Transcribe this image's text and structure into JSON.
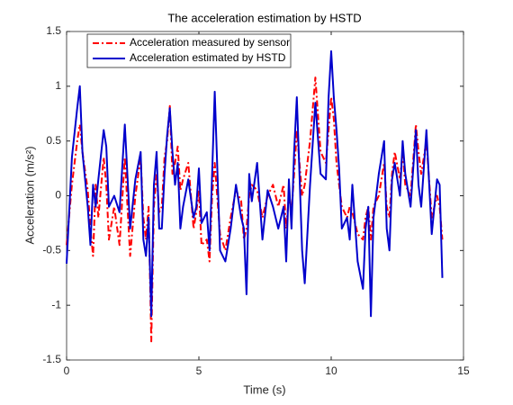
{
  "chart_data": {
    "type": "line",
    "title": "The acceleration estimation by HSTD",
    "x_label": "Time (s)",
    "y_label": "Acceleration (m/s²)",
    "xlim": [
      0,
      15
    ],
    "xticks": [
      0,
      5,
      10,
      15
    ],
    "ylim": [
      -1.5,
      1.5
    ],
    "yticks": [
      -1.5,
      -1,
      -0.5,
      0,
      0.5,
      1,
      1.5
    ],
    "legend": "upper left",
    "x": [
      0,
      0.2,
      0.4,
      0.5,
      0.6,
      0.8,
      0.9,
      1.0,
      1.1,
      1.2,
      1.4,
      1.5,
      1.6,
      1.8,
      2.0,
      2.2,
      2.4,
      2.6,
      2.8,
      2.9,
      3.0,
      3.1,
      3.2,
      3.3,
      3.4,
      3.5,
      3.6,
      3.7,
      3.8,
      3.9,
      4.0,
      4.1,
      4.2,
      4.3,
      4.4,
      4.6,
      4.8,
      4.9,
      5.0,
      5.1,
      5.3,
      5.4,
      5.5,
      5.6,
      5.8,
      6.0,
      6.2,
      6.4,
      6.6,
      6.7,
      6.8,
      6.9,
      7.0,
      7.2,
      7.4,
      7.6,
      7.8,
      8.0,
      8.2,
      8.3,
      8.4,
      8.5,
      8.6,
      8.7,
      8.9,
      9.0,
      9.2,
      9.4,
      9.6,
      9.8,
      9.9,
      10.0,
      10.1,
      10.2,
      10.3,
      10.4,
      10.6,
      10.7,
      10.8,
      11.0,
      11.2,
      11.3,
      11.4,
      11.5,
      11.6,
      11.8,
      12.0,
      12.1,
      12.2,
      12.3,
      12.4,
      12.6,
      12.7,
      12.8,
      13.0,
      13.2,
      13.3,
      13.4,
      13.6,
      13.8,
      14.0,
      14.1,
      14.2
    ],
    "series": [
      {
        "name": "Acceleration measured by sensor",
        "color": "#ff0000",
        "dash": "dashdot",
        "values": [
          -0.45,
          0.1,
          0.5,
          0.65,
          0.4,
          0.05,
          -0.3,
          -0.55,
          0.1,
          -0.2,
          0.35,
          0.1,
          -0.4,
          -0.1,
          -0.45,
          0.35,
          -0.55,
          0.0,
          0.35,
          -0.2,
          -0.4,
          -0.1,
          -1.33,
          -0.1,
          0.2,
          -0.15,
          -0.1,
          0.35,
          0.5,
          0.82,
          0.2,
          0.3,
          0.45,
          0.05,
          0.15,
          0.3,
          -0.3,
          -0.15,
          0.05,
          -0.45,
          -0.4,
          -0.6,
          0.0,
          0.3,
          -0.35,
          -0.5,
          -0.2,
          0.05,
          -0.05,
          -0.4,
          -0.3,
          0.0,
          0.1,
          0.05,
          -0.2,
          0.0,
          0.1,
          -0.1,
          0.1,
          -0.3,
          0.0,
          -0.15,
          0.2,
          0.6,
          0.0,
          0.1,
          0.5,
          1.08,
          0.4,
          0.3,
          0.6,
          0.9,
          0.7,
          0.3,
          0.1,
          -0.1,
          -0.2,
          -0.1,
          -0.15,
          -0.35,
          -0.4,
          -0.2,
          -0.1,
          -0.4,
          -0.1,
          0.0,
          0.3,
          -0.1,
          -0.2,
          0.2,
          0.4,
          0.15,
          0.4,
          0.1,
          0.0,
          0.65,
          0.4,
          0.2,
          0.5,
          -0.2,
          0.0,
          -0.1,
          -0.4
        ]
      },
      {
        "name": "Acceleration estimated by HSTD",
        "color": "#0000cc",
        "dash": "solid",
        "values": [
          -0.62,
          0.35,
          0.8,
          1.0,
          0.4,
          -0.1,
          -0.45,
          0.1,
          -0.1,
          0.15,
          0.6,
          0.45,
          -0.1,
          0.0,
          -0.15,
          0.65,
          -0.3,
          0.15,
          0.4,
          -0.4,
          -0.55,
          -0.2,
          -1.1,
          0.1,
          0.4,
          -0.3,
          -0.3,
          0.2,
          0.55,
          0.8,
          0.4,
          0.1,
          0.3,
          -0.3,
          -0.1,
          0.15,
          -0.2,
          -0.1,
          0.25,
          -0.25,
          -0.15,
          -0.5,
          0.2,
          0.95,
          -0.5,
          -0.6,
          -0.3,
          0.1,
          -0.2,
          -0.3,
          -0.9,
          0.2,
          -0.05,
          0.3,
          -0.4,
          0.05,
          -0.1,
          -0.3,
          -0.1,
          -0.6,
          0.15,
          -0.3,
          0.4,
          0.9,
          -0.5,
          -0.8,
          0.1,
          0.85,
          0.2,
          0.15,
          0.9,
          1.32,
          0.9,
          0.6,
          0.25,
          -0.3,
          -0.2,
          -0.4,
          0.1,
          -0.6,
          -0.85,
          -0.3,
          -0.1,
          -1.1,
          -0.2,
          0.2,
          0.5,
          -0.3,
          -0.5,
          0.15,
          0.3,
          0.0,
          0.5,
          0.2,
          -0.1,
          0.6,
          0.1,
          -0.1,
          0.6,
          -0.35,
          0.15,
          0.1,
          -0.75
        ]
      }
    ]
  }
}
